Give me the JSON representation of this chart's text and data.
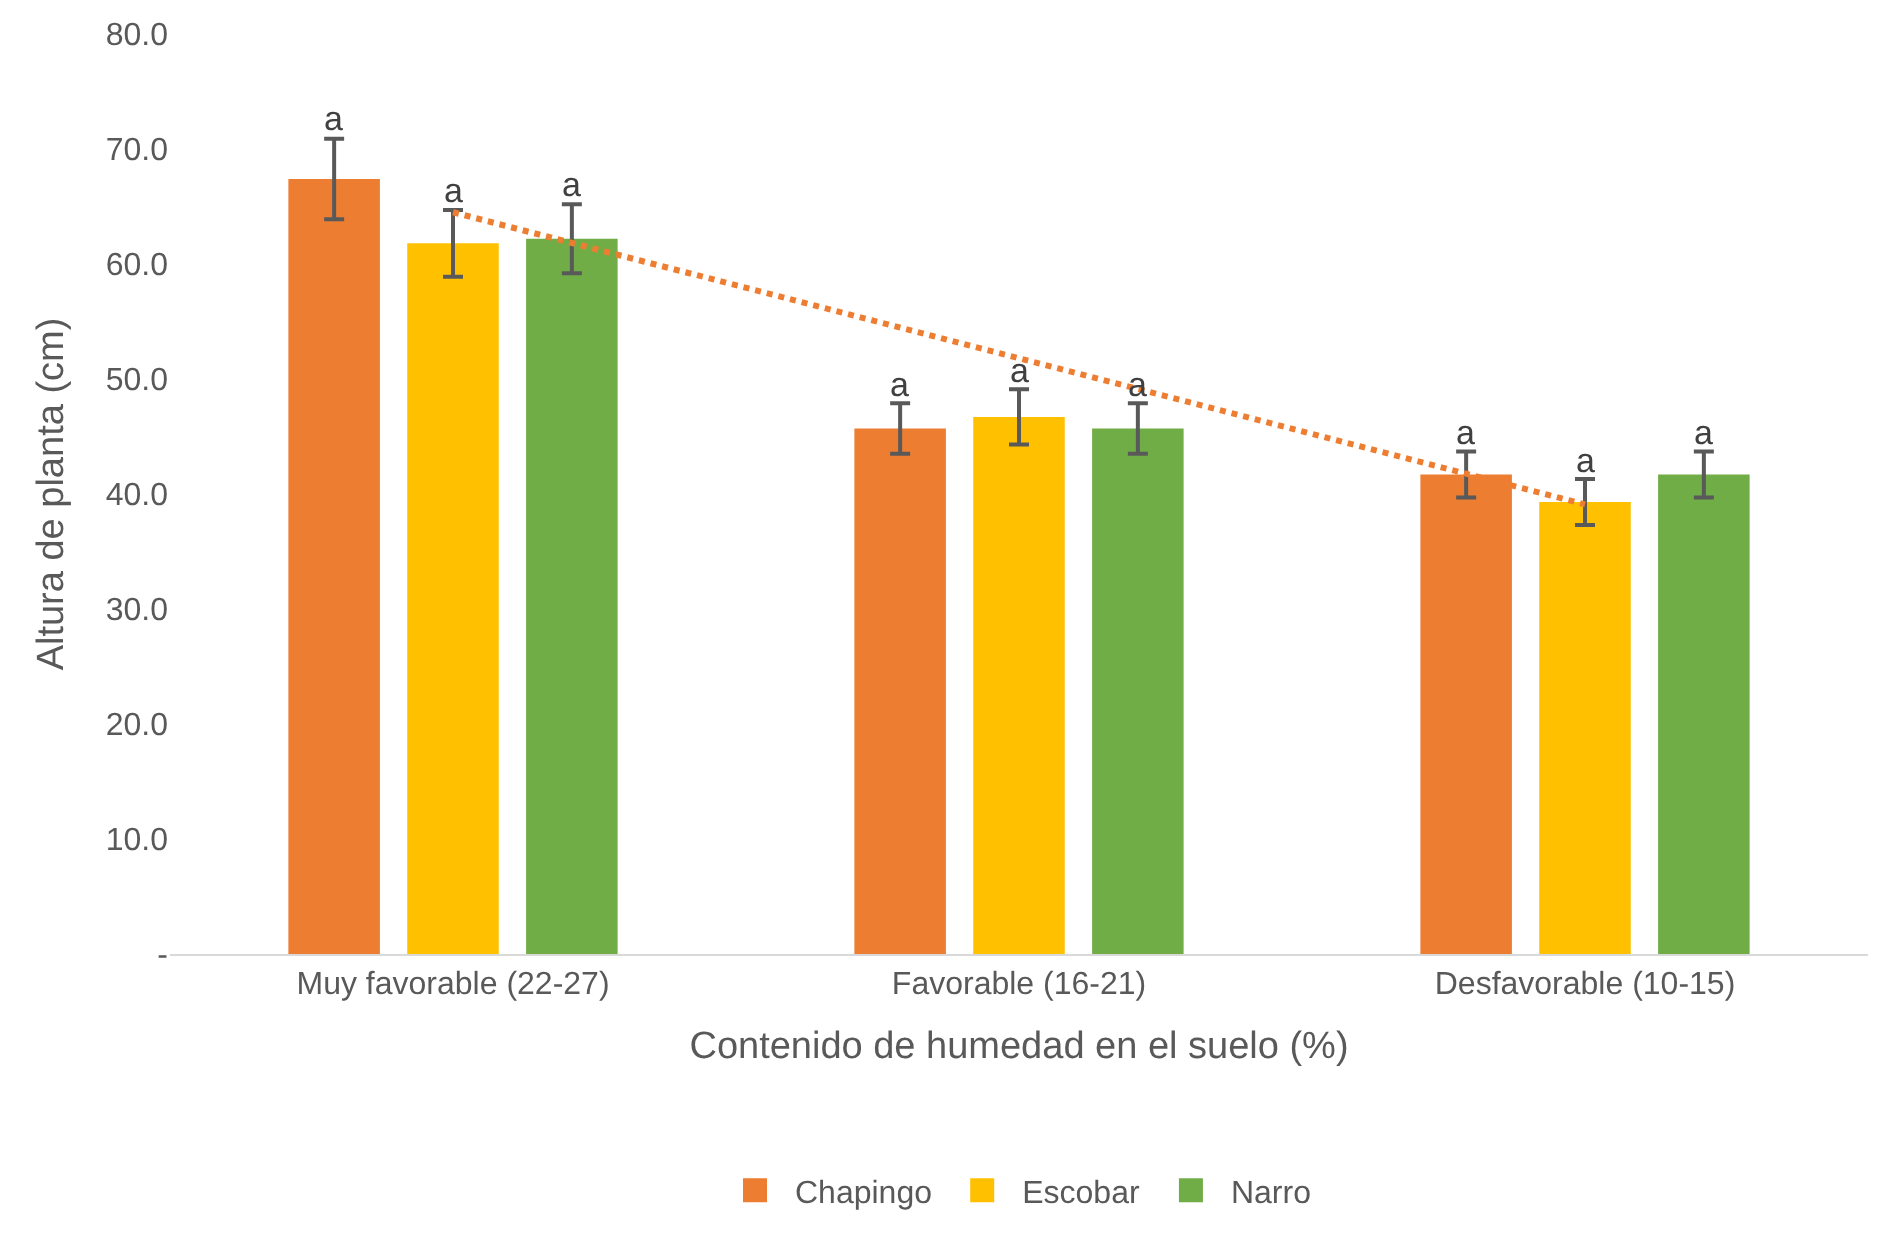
{
  "chart_data": {
    "type": "bar",
    "xlabel": "Contenido de humedad en el suelo (%)",
    "ylabel": "Altura de planta (cm)",
    "categories": [
      "Muy favorable (22-27)",
      "Favorable (16-21)",
      "Desfavorable (10-15)"
    ],
    "series": [
      {
        "name": "Chapingo",
        "color": "#ed7d31",
        "values": [
          67.4,
          45.7,
          41.7
        ],
        "errors": [
          3.5,
          2.2,
          2.0
        ],
        "value_labels": [
          "a",
          "a",
          "a"
        ]
      },
      {
        "name": "Escobar",
        "color": "#ffc000",
        "values": [
          61.8,
          46.7,
          39.3
        ],
        "errors": [
          2.9,
          2.4,
          2.0
        ],
        "value_labels": [
          "a",
          "a",
          "a"
        ]
      },
      {
        "name": "Narro",
        "color": "#70ad47",
        "values": [
          62.2,
          45.7,
          41.7
        ],
        "errors": [
          3.0,
          2.2,
          2.0
        ],
        "value_labels": [
          "a",
          "a",
          "a"
        ]
      },
      {
        "type": "line",
        "color": "#ed7d31",
        "line_style": "dotted",
        "marker": "none",
        "values": [
          64.5,
          51.8,
          39.1
        ]
      }
    ],
    "ylim": [
      0,
      80
    ],
    "yticks": [
      {
        "value": 0,
        "label": "-"
      },
      {
        "value": 10,
        "label": "10.0"
      },
      {
        "value": 20,
        "label": "20.0"
      },
      {
        "value": 30,
        "label": "30.0"
      },
      {
        "value": 40,
        "label": "40.0"
      },
      {
        "value": 50,
        "label": "50.0"
      },
      {
        "value": 60,
        "label": "60.0"
      },
      {
        "value": 70,
        "label": "70.0"
      },
      {
        "value": 80,
        "label": "80.0"
      }
    ],
    "grid": false,
    "legend": "bottom"
  }
}
